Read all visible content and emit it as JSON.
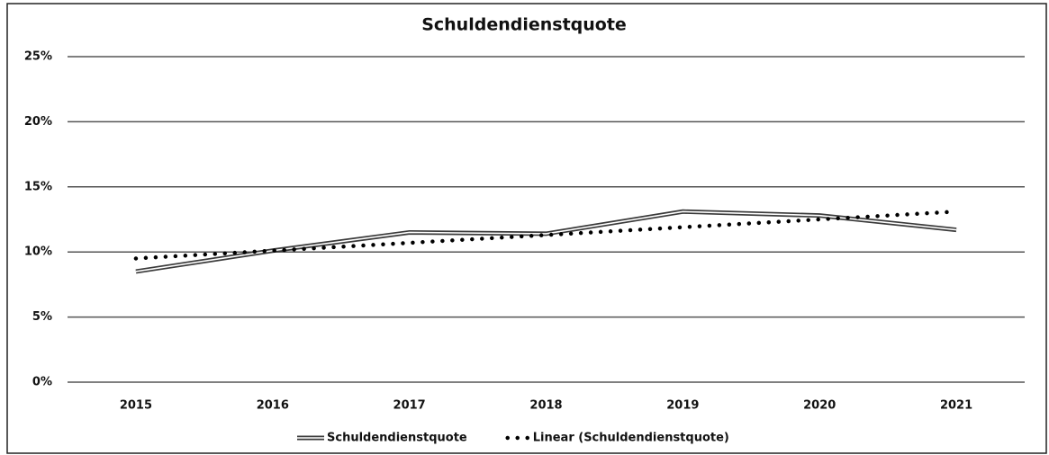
{
  "chart_data": {
    "type": "line",
    "title": "Schuldendienstquote",
    "categories": [
      "2015",
      "2016",
      "2017",
      "2018",
      "2019",
      "2020",
      "2021"
    ],
    "series": [
      {
        "name": "Schuldendienstquote",
        "color": "#3a3a3a",
        "values": [
          8.5,
          10.1,
          11.5,
          11.4,
          13.1,
          12.8,
          11.7
        ]
      },
      {
        "name": "Linear (Schuldendienstquote)",
        "color": "#000000",
        "dotted": true,
        "values": [
          9.5,
          10.1,
          10.7,
          11.3,
          11.9,
          12.5,
          13.1
        ]
      }
    ],
    "ylim": [
      0,
      25
    ],
    "yticks": [
      {
        "value": 0,
        "label": "0%"
      },
      {
        "value": 5,
        "label": "5%"
      },
      {
        "value": 10,
        "label": "10%"
      },
      {
        "value": 15,
        "label": "15%"
      },
      {
        "value": 20,
        "label": "20%"
      },
      {
        "value": 25,
        "label": "25%"
      }
    ],
    "grid": true,
    "legend": "bottom"
  }
}
